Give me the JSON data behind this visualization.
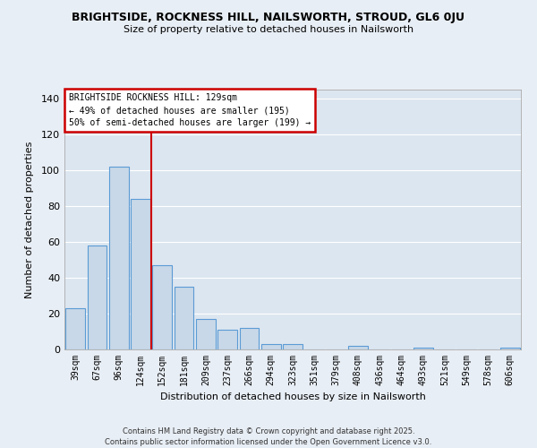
{
  "title": "BRIGHTSIDE, ROCKNESS HILL, NAILSWORTH, STROUD, GL6 0JU",
  "subtitle": "Size of property relative to detached houses in Nailsworth",
  "xlabel": "Distribution of detached houses by size in Nailsworth",
  "ylabel": "Number of detached properties",
  "bar_color": "#c8d8e8",
  "bar_edgecolor": "#5b9bd5",
  "background_color": "#e8eef5",
  "plot_bg_color": "#dce6f0",
  "grid_color": "#ffffff",
  "annotation_box_color": "#ffffff",
  "annotation_box_edge": "#cc0000",
  "vline_color": "#cc0000",
  "categories": [
    "39sqm",
    "67sqm",
    "96sqm",
    "124sqm",
    "152sqm",
    "181sqm",
    "209sqm",
    "237sqm",
    "266sqm",
    "294sqm",
    "323sqm",
    "351sqm",
    "379sqm",
    "408sqm",
    "436sqm",
    "464sqm",
    "493sqm",
    "521sqm",
    "549sqm",
    "578sqm",
    "606sqm"
  ],
  "values": [
    23,
    58,
    102,
    84,
    47,
    35,
    17,
    11,
    12,
    3,
    3,
    0,
    0,
    2,
    0,
    0,
    1,
    0,
    0,
    0,
    1
  ],
  "vline_position": 3.5,
  "annotation_title": "BRIGHTSIDE ROCKNESS HILL: 129sqm",
  "annotation_line1": "← 49% of detached houses are smaller (195)",
  "annotation_line2": "50% of semi-detached houses are larger (199) →",
  "footer1": "Contains HM Land Registry data © Crown copyright and database right 2025.",
  "footer2": "Contains public sector information licensed under the Open Government Licence v3.0.",
  "ylim": [
    0,
    145
  ],
  "yticks": [
    0,
    20,
    40,
    60,
    80,
    100,
    120,
    140
  ]
}
